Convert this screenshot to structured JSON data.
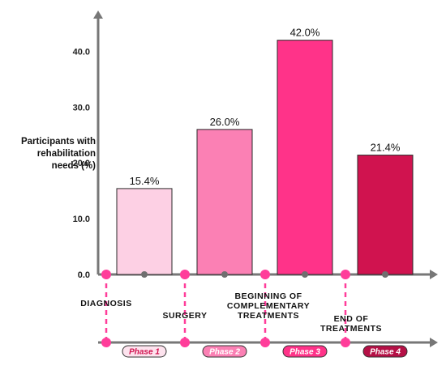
{
  "chart_data": {
    "type": "bar",
    "ylabel_lines": [
      "Participants with",
      "rehabilitation",
      "needs (%)"
    ],
    "ylim": [
      0,
      45
    ],
    "yticks": [
      "0.0",
      "10.0",
      "20.0",
      "30.0",
      "40.0"
    ],
    "yticks_values": [
      0,
      10,
      20,
      30,
      40
    ],
    "grid": false,
    "values": [
      15.4,
      26.0,
      42.0,
      21.4
    ],
    "value_labels": [
      "15.4%",
      "26.0%",
      "42.0%",
      "21.4%"
    ],
    "bar_colors": [
      "#fdd0e4",
      "#fb80b4",
      "#ff3389",
      "#d0134f"
    ],
    "milestones": [
      {
        "lines": [
          "DIAGNOSIS"
        ]
      },
      {
        "lines": [
          "SURGERY"
        ]
      },
      {
        "lines": [
          "BEGINNING OF",
          "COMPLEMENTARY",
          "TREATMENTS"
        ]
      },
      {
        "lines": [
          "END OF",
          "TREATMENTS"
        ]
      }
    ],
    "phases": [
      {
        "label": "Phase 1",
        "fill": "#fde3ee",
        "text_color": "#d0134f"
      },
      {
        "label": "Phase 2",
        "fill": "#fb80b4",
        "text_color": "#ffffff"
      },
      {
        "label": "Phase 3",
        "fill": "#ff3389",
        "text_color": "#ffffff"
      },
      {
        "label": "Phase 4",
        "fill": "#b51046",
        "text_color": "#ffffff"
      }
    ],
    "colors": {
      "axis": "#777777",
      "marker": "#ff3d9a",
      "dash": "#ff3d9a"
    }
  }
}
